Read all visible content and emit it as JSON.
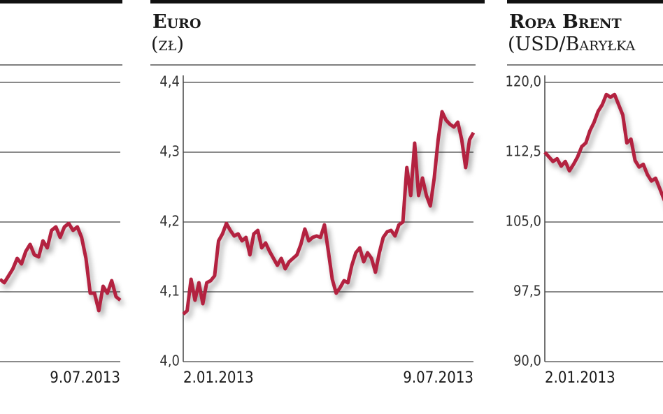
{
  "chart_data": [
    {
      "type": "line",
      "color": "#b3213f",
      "x_end_label": "9.07.2013",
      "ylim": [
        0,
        4
      ],
      "yticks": [
        0,
        1,
        2,
        3,
        4
      ],
      "tick_labels": false,
      "grid": true,
      "values": [
        1.18,
        1.13,
        1.23,
        1.33,
        1.48,
        1.4,
        1.58,
        1.68,
        1.53,
        1.5,
        1.73,
        1.63,
        1.88,
        1.93,
        1.78,
        1.93,
        1.98,
        1.88,
        1.93,
        1.78,
        1.48,
        0.98,
        0.98,
        0.73,
        1.08,
        0.98,
        1.16,
        0.93,
        0.88
      ]
    },
    {
      "type": "line",
      "title": "Euro",
      "subtitle": "(zł)",
      "color": "#b3213f",
      "x_start_label": "2.01.2013",
      "x_end_label": "9.07.2013",
      "ylim": [
        4.0,
        4.4
      ],
      "grid": true,
      "yticks": [
        {
          "value": 4.0,
          "label": "4,0"
        },
        {
          "value": 4.1,
          "label": "4,1"
        },
        {
          "value": 4.2,
          "label": "4,2"
        },
        {
          "value": 4.3,
          "label": "4,3"
        },
        {
          "value": 4.4,
          "label": "4,4"
        }
      ],
      "values": [
        4.068,
        4.073,
        4.118,
        4.088,
        4.113,
        4.083,
        4.113,
        4.116,
        4.123,
        4.173,
        4.183,
        4.198,
        4.188,
        4.18,
        4.183,
        4.173,
        4.178,
        4.153,
        4.183,
        4.188,
        4.163,
        4.17,
        4.158,
        4.148,
        4.138,
        4.148,
        4.133,
        4.143,
        4.148,
        4.153,
        4.168,
        4.19,
        4.173,
        4.178,
        4.18,
        4.178,
        4.196,
        4.158,
        4.118,
        4.098,
        4.106,
        4.116,
        4.113,
        4.138,
        4.156,
        4.163,
        4.143,
        4.156,
        4.148,
        4.128,
        4.156,
        4.178,
        4.186,
        4.188,
        4.18,
        4.196,
        4.2,
        4.278,
        4.238,
        4.313,
        4.238,
        4.263,
        4.238,
        4.223,
        4.263,
        4.318,
        4.358,
        4.346,
        4.34,
        4.336,
        4.343,
        4.318,
        4.278,
        4.318,
        4.328
      ]
    },
    {
      "type": "line",
      "title": "Ropa Brent",
      "subtitle": "(USD/Baryłka",
      "color": "#b3213f",
      "x_start_label": "2.01.2013",
      "ylim": [
        90,
        120
      ],
      "grid": true,
      "yticks": [
        {
          "value": 90,
          "label": "90,0"
        },
        {
          "value": 97.5,
          "label": "97,5"
        },
        {
          "value": 105,
          "label": "105,0"
        },
        {
          "value": 112.5,
          "label": "112,5"
        },
        {
          "value": 120,
          "label": "120,0"
        }
      ],
      "values": [
        112.5,
        112.0,
        111.5,
        111.8,
        111.0,
        111.5,
        110.5,
        111.2,
        112.0,
        113.1,
        113.5,
        114.8,
        115.7,
        116.9,
        117.6,
        118.7,
        118.4,
        118.7,
        117.6,
        116.5,
        113.5,
        113.9,
        111.6,
        110.9,
        111.2,
        110.1,
        109.4,
        109.7,
        108.6,
        107.5,
        106.4
      ]
    }
  ]
}
